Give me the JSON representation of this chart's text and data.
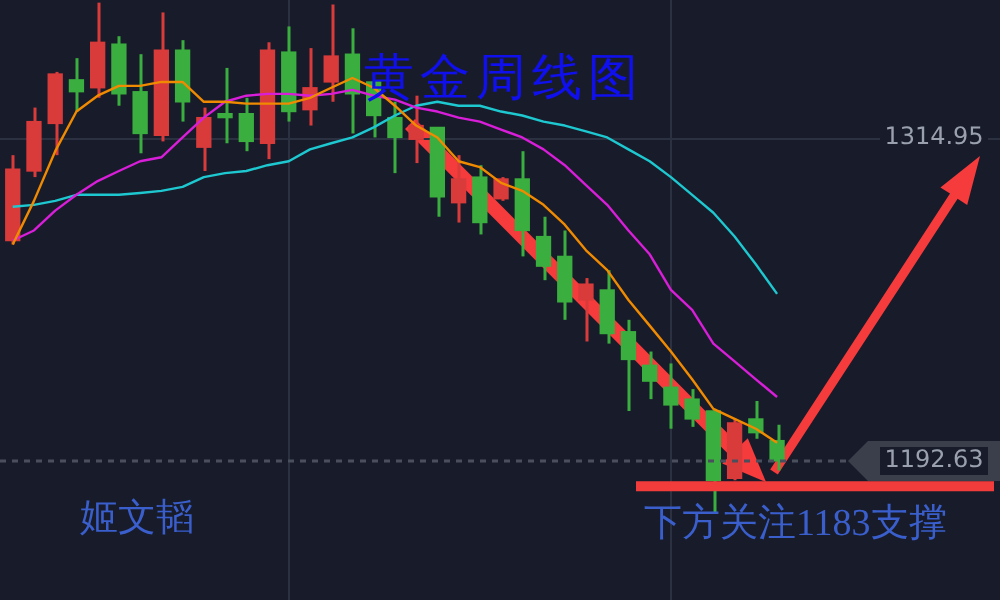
{
  "chart_data": {
    "type": "candlestick",
    "title": "黄金周线图",
    "annotations": [
      "姬文韬",
      {
        "text": "下方关注1183支撑",
        "y": 1183
      }
    ],
    "categories": [
      null,
      null,
      null,
      null,
      null,
      null,
      null,
      null,
      null,
      null,
      null,
      null,
      null,
      null,
      null,
      null,
      null,
      null,
      null,
      null,
      null,
      null,
      null,
      null,
      null,
      null,
      null,
      null,
      null,
      null,
      null,
      null,
      null,
      null,
      null,
      null,
      null
    ],
    "ohlc": [
      [
        1276.0,
        1308.3,
        1274.5,
        1303.0
      ],
      [
        1302.3,
        1326.3,
        1300.0,
        1321.0
      ],
      [
        1320.3,
        1339.8,
        1308.3,
        1339.0
      ],
      [
        1336.8,
        1345.0,
        1324.8,
        1332.3
      ],
      [
        1333.8,
        1366.0,
        1330.0,
        1351.0
      ],
      [
        1350.3,
        1353.3,
        1327.0,
        1331.5
      ],
      [
        1332.3,
        1346.5,
        1309.0,
        1316.5
      ],
      [
        1315.8,
        1362.3,
        1313.5,
        1348.0
      ],
      [
        1348.0,
        1351.8,
        1321.0,
        1328.5
      ],
      [
        1311.3,
        1326.3,
        1302.3,
        1322.5
      ],
      [
        1324.0,
        1341.3,
        1312.8,
        1322.5
      ],
      [
        1324.0,
        1330.0,
        1309.8,
        1313.5
      ],
      [
        1312.8,
        1351.0,
        1306.8,
        1348.0
      ],
      [
        1347.3,
        1357.0,
        1321.0,
        1324.8
      ],
      [
        1325.5,
        1348.8,
        1319.5,
        1333.8
      ],
      [
        1336.0,
        1365.3,
        1328.5,
        1345.8
      ],
      [
        1346.5,
        1356.3,
        1316.5,
        1331.5
      ],
      [
        1336.0,
        1336.0,
        1315.0,
        1323.3
      ],
      [
        1322.5,
        1328.5,
        1301.5,
        1315.0
      ],
      [
        1314.3,
        1330.8,
        1305.3,
        1319.5
      ],
      [
        1318.8,
        1318.8,
        1285.0,
        1292.5
      ],
      [
        1290.3,
        1308.3,
        1282.8,
        1299.3
      ],
      [
        1300.0,
        1304.5,
        1278.3,
        1282.8
      ],
      [
        1291.8,
        1300.0,
        1291.0,
        1299.3
      ],
      [
        1299.3,
        1309.8,
        1270.0,
        1279.8
      ],
      [
        1277.5,
        1285.0,
        1261.0,
        1266.3
      ],
      [
        1270.0,
        1279.8,
        1246.0,
        1252.8
      ],
      [
        1253.5,
        1261.8,
        1237.8,
        1259.5
      ],
      [
        1257.3,
        1264.8,
        1237.0,
        1240.8
      ],
      [
        1241.5,
        1246.0,
        1211.5,
        1231.0
      ],
      [
        1228.8,
        1234.0,
        1216.0,
        1222.8
      ],
      [
        1220.5,
        1229.5,
        1204.8,
        1213.8
      ],
      [
        1216.0,
        1219.8,
        1205.5,
        1208.5
      ],
      [
        1211.5,
        1212.3,
        1173.3,
        1185.3
      ],
      [
        1186.0,
        1208.5,
        1185.3,
        1207.0
      ],
      [
        1208.5,
        1215.3,
        1201.0,
        1203.3
      ],
      [
        1200.3,
        1206.3,
        1189.0,
        1192.63
      ]
    ],
    "colors": [
      "#d93a3a",
      "#d93a3a",
      "#d93a3a",
      "#3aae3e",
      "#d93a3a",
      "#3aae3e",
      "#3aae3e",
      "#d93a3a",
      "#3aae3e",
      "#d93a3a",
      "#3aae3e",
      "#3aae3e",
      "#d93a3a",
      "#3aae3e",
      "#d93a3a",
      "#d93a3a",
      "#3aae3e",
      "#3aae3e",
      "#3aae3e",
      "#d93a3a",
      "#3aae3e",
      "#d93a3a",
      "#3aae3e",
      "#d93a3a",
      "#3aae3e",
      "#3aae3e",
      "#3aae3e",
      "#d93a3a",
      "#3aae3e",
      "#3aae3e",
      "#3aae3e",
      "#3aae3e",
      "#3aae3e",
      "#3aae3e",
      "#d93a3a",
      "#3aae3e",
      "#3aae3e"
    ],
    "series": [
      {
        "type": "line",
        "color": "#f08a00",
        "values": [
          1274.5,
          1291,
          1309.8,
          1324.8,
          1330.8,
          1334.5,
          1334.5,
          1336,
          1336,
          1328.5,
          1328.5,
          1327.8,
          1327.8,
          1327.8,
          1330,
          1333.8,
          1337.5,
          1333.8,
          1327,
          1319.5,
          1315,
          1306,
          1303.8,
          1297.8,
          1294.8,
          1289.5,
          1282,
          1272.3,
          1264.8,
          1253.5,
          1243.8,
          1234,
          1223.5,
          1212.3,
          1208.5,
          1204.8,
          1199.5
        ]
      },
      {
        "type": "line",
        "color": "#d81ed8",
        "values": [
          1276,
          1279.8,
          1287.3,
          1293.3,
          1298.5,
          1302.3,
          1306,
          1307.5,
          1315,
          1322.5,
          1328.5,
          1330.8,
          1331.5,
          1331.5,
          1330.8,
          1331.5,
          1333,
          1330.8,
          1329.3,
          1326.3,
          1324.8,
          1322.5,
          1321,
          1318,
          1315,
          1310.5,
          1304.5,
          1297,
          1289.5,
          1279.8,
          1270.8,
          1257.3,
          1249.8,
          1237,
          1230.3,
          1223.5,
          1216.8
        ]
      },
      {
        "type": "line",
        "color": "#1ec8d0",
        "values": [
          1288.8,
          1289.5,
          1291,
          1293.3,
          1293.3,
          1293.3,
          1294,
          1294.8,
          1296.3,
          1300,
          1301.5,
          1302.3,
          1304.5,
          1306,
          1310.5,
          1312.8,
          1315,
          1318.8,
          1323.3,
          1327,
          1328.5,
          1327,
          1327,
          1324.8,
          1323.3,
          1321,
          1319.5,
          1317.3,
          1315,
          1310.5,
          1306,
          1300,
          1293.3,
          1286.5,
          1277.5,
          1267,
          1255.8
        ]
      }
    ],
    "ylim": [
      1140,
      1367
    ],
    "yticks": [
      1192.63,
      1314.95
    ],
    "grid": "y",
    "tick_labels": "y",
    "legend": false,
    "ref_lines": [
      {
        "axis": "y",
        "value": 1192.63,
        "color": "#4a4f5e",
        "line_style": "dotted"
      },
      {
        "axis": "y",
        "value": 1183,
        "color": "#f23c3c",
        "line_style": "solid"
      }
    ]
  }
}
